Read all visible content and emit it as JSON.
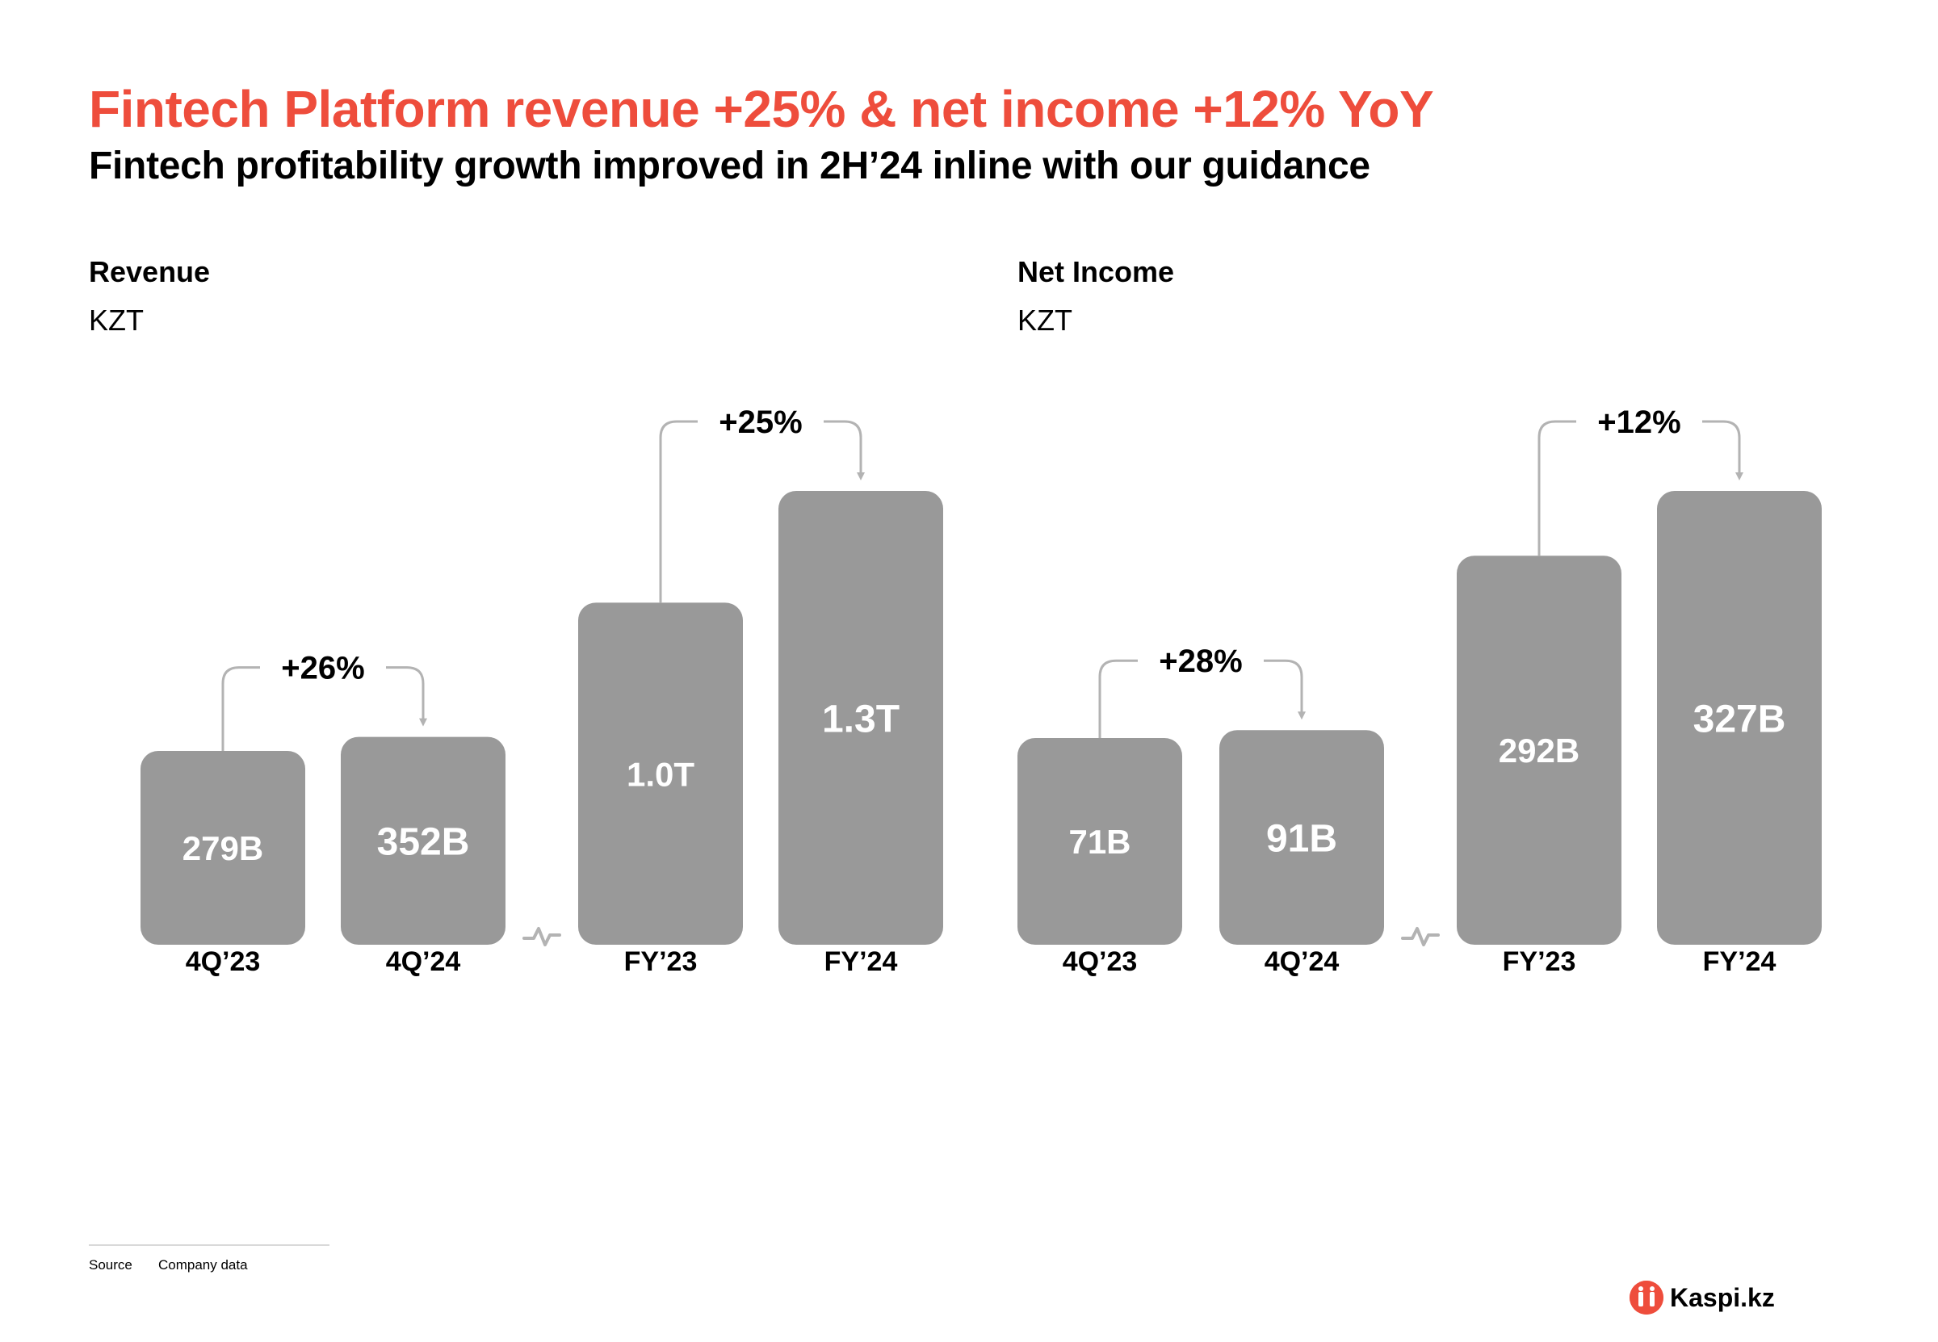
{
  "title": "Fintech Platform revenue +25% & net income +12% YoY",
  "subtitle": "Fintech profitability growth improved in 2H’24 inline with our guidance",
  "colors": {
    "accent": "#ee4d3c",
    "bar": "#999999",
    "connector": "#b3b3b3"
  },
  "chart_data": [
    {
      "type": "bar",
      "title": "Revenue",
      "unit": "KZT",
      "categories": [
        "4Q’23",
        "4Q’24",
        "FY’23",
        "FY’24"
      ],
      "values": [
        279,
        352,
        1000,
        1300
      ],
      "value_units": "B KZT",
      "value_labels": [
        "279B",
        "352B",
        "1.0T",
        "1.3T"
      ],
      "axis_break_between": [
        "4Q’24",
        "FY’23"
      ],
      "growth": [
        {
          "from": "4Q’23",
          "to": "4Q’24",
          "label": "+26%"
        },
        {
          "from": "FY’23",
          "to": "FY’24",
          "label": "+25%"
        }
      ]
    },
    {
      "type": "bar",
      "title": "Net Income",
      "unit": "KZT",
      "categories": [
        "4Q’23",
        "4Q’24",
        "FY’23",
        "FY’24"
      ],
      "values": [
        71,
        91,
        292,
        327
      ],
      "value_units": "B KZT",
      "value_labels": [
        "71B",
        "91B",
        "292B",
        "327B"
      ],
      "axis_break_between": [
        "4Q’24",
        "FY’23"
      ],
      "growth": [
        {
          "from": "4Q’23",
          "to": "4Q’24",
          "label": "+28%"
        },
        {
          "from": "FY’23",
          "to": "FY’24",
          "label": "+12%"
        }
      ]
    }
  ],
  "footer": {
    "source_label": "Source",
    "source_value": "Company data"
  },
  "logo": {
    "text": "Kaspi.kz",
    "icon": "kaspi-logo-icon"
  }
}
